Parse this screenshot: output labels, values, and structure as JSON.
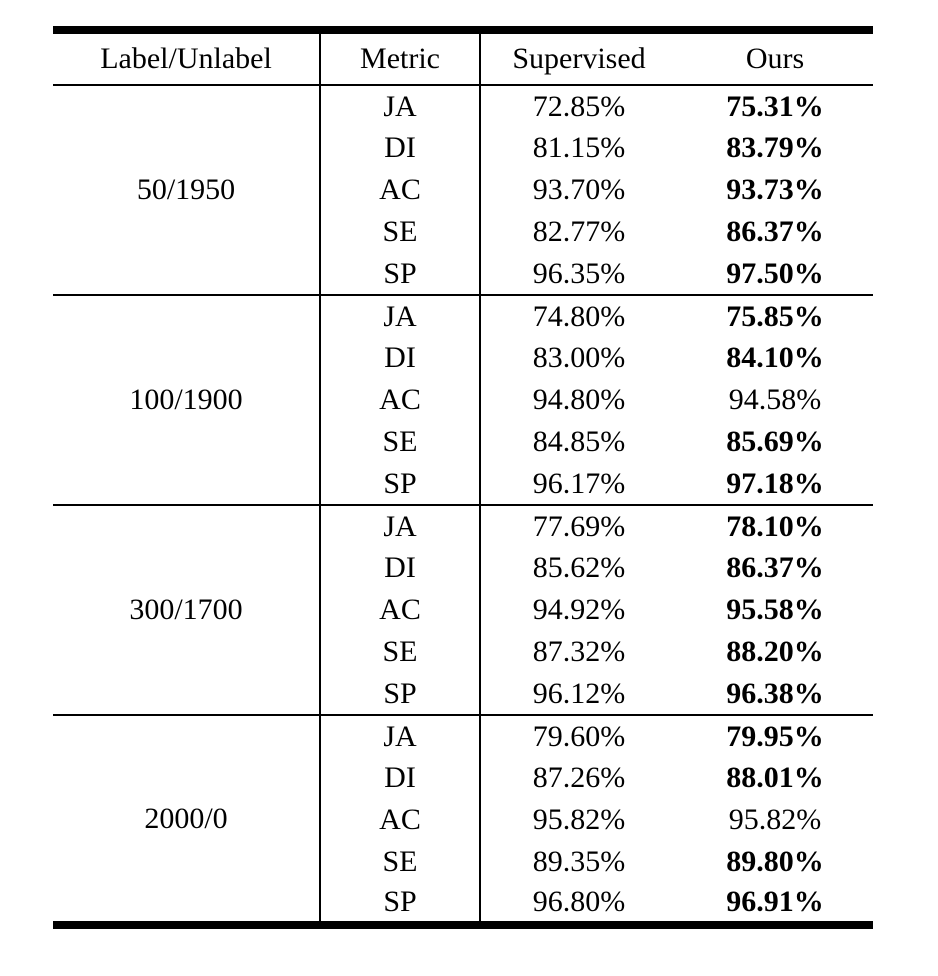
{
  "page": {
    "background": "#ffffff",
    "text_color": "#000000"
  },
  "table": {
    "columns": [
      "Label/Unlabel",
      "Metric",
      "Supervised",
      "Ours"
    ],
    "groups": [
      {
        "label": "50/1950",
        "rows": [
          {
            "metric": "JA",
            "supervised": "72.85%",
            "ours": "75.31%",
            "ours_bold": true
          },
          {
            "metric": "DI",
            "supervised": "81.15%",
            "ours": "83.79%",
            "ours_bold": true
          },
          {
            "metric": "AC",
            "supervised": "93.70%",
            "ours": "93.73%",
            "ours_bold": true
          },
          {
            "metric": "SE",
            "supervised": "82.77%",
            "ours": "86.37%",
            "ours_bold": true
          },
          {
            "metric": "SP",
            "supervised": "96.35%",
            "ours": "97.50%",
            "ours_bold": true
          }
        ]
      },
      {
        "label": "100/1900",
        "rows": [
          {
            "metric": "JA",
            "supervised": "74.80%",
            "ours": "75.85%",
            "ours_bold": true
          },
          {
            "metric": "DI",
            "supervised": "83.00%",
            "ours": "84.10%",
            "ours_bold": true
          },
          {
            "metric": "AC",
            "supervised": "94.80%",
            "ours": "94.58%",
            "ours_bold": false
          },
          {
            "metric": "SE",
            "supervised": "84.85%",
            "ours": "85.69%",
            "ours_bold": true
          },
          {
            "metric": "SP",
            "supervised": "96.17%",
            "ours": "97.18%",
            "ours_bold": true
          }
        ]
      },
      {
        "label": "300/1700",
        "rows": [
          {
            "metric": "JA",
            "supervised": "77.69%",
            "ours": "78.10%",
            "ours_bold": true
          },
          {
            "metric": "DI",
            "supervised": "85.62%",
            "ours": "86.37%",
            "ours_bold": true
          },
          {
            "metric": "AC",
            "supervised": "94.92%",
            "ours": "95.58%",
            "ours_bold": true
          },
          {
            "metric": "SE",
            "supervised": "87.32%",
            "ours": "88.20%",
            "ours_bold": true
          },
          {
            "metric": "SP",
            "supervised": "96.12%",
            "ours": "96.38%",
            "ours_bold": true
          }
        ]
      },
      {
        "label": "2000/0",
        "rows": [
          {
            "metric": "JA",
            "supervised": "79.60%",
            "ours": "79.95%",
            "ours_bold": true
          },
          {
            "metric": "DI",
            "supervised": "87.26%",
            "ours": "88.01%",
            "ours_bold": true
          },
          {
            "metric": "AC",
            "supervised": "95.82%",
            "ours": "95.82%",
            "ours_bold": false
          },
          {
            "metric": "SE",
            "supervised": "89.35%",
            "ours": "89.80%",
            "ours_bold": true
          },
          {
            "metric": "SP",
            "supervised": "96.80%",
            "ours": "96.91%",
            "ours_bold": true
          }
        ]
      }
    ]
  }
}
